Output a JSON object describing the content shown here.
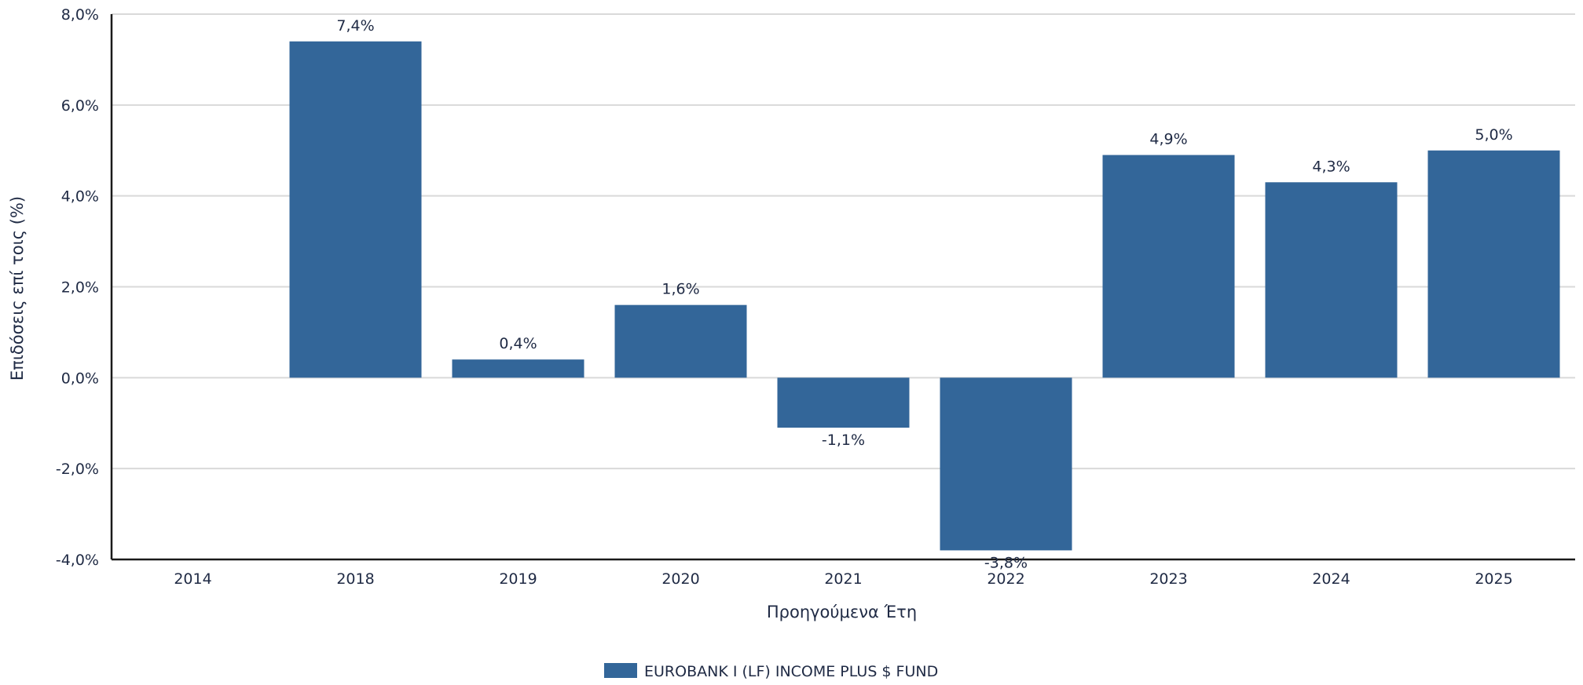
{
  "chart_data": {
    "type": "bar",
    "categories": [
      "2014",
      "2018",
      "2019",
      "2020",
      "2021",
      "2022",
      "2023",
      "2024",
      "2025"
    ],
    "series": [
      {
        "name": "EUROBANK I (LF) INCOME PLUS $ FUND",
        "values": [
          null,
          7.4,
          0.4,
          1.6,
          -1.1,
          -3.8,
          4.9,
          4.3,
          5.0
        ],
        "data_labels": [
          "",
          "7,4%",
          "0,4%",
          "1,6%",
          "-1,1%",
          "-3,8%",
          "4,9%",
          "4,3%",
          "5,0%"
        ],
        "color": "#336699"
      }
    ],
    "title": "",
    "xlabel": "Προηγούμενα Έτη",
    "ylabel": "Επιδόσεις επί τοις (%)",
    "ylim": [
      -4,
      8
    ],
    "yticks": [
      -4,
      -2,
      0,
      2,
      4,
      6,
      8
    ],
    "ytick_labels": [
      "-4,0%",
      "-2,0%",
      "0,0%",
      "2,0%",
      "4,0%",
      "6,0%",
      "8,0%"
    ],
    "grid": true,
    "legend_position": "bottom-center"
  },
  "colors": {
    "bar": "#336699",
    "grid": "#d9d9d9",
    "axis": "#1a1a1a",
    "text": "#1f2a44"
  }
}
